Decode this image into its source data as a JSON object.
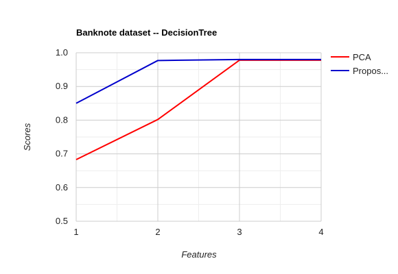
{
  "chart_data": {
    "type": "line",
    "title": "Banknote dataset -- DecisionTree",
    "xlabel": "Features",
    "ylabel": "Scores",
    "x": [
      1,
      2,
      3,
      4
    ],
    "x_tick_labels": [
      "1",
      "2",
      "3",
      "4"
    ],
    "xlim": [
      1,
      4
    ],
    "ylim": [
      0.5,
      1.0
    ],
    "y_ticks": [
      0.5,
      0.6,
      0.7,
      0.8,
      0.9,
      1.0
    ],
    "y_tick_labels": [
      "0.5",
      "0.6",
      "0.7",
      "0.8",
      "0.9",
      "1.0"
    ],
    "grid": true,
    "minor_grid": true,
    "legend_position": "right",
    "series": [
      {
        "name": "PCA",
        "color": "#ff0000",
        "values": [
          0.683,
          0.802,
          0.978,
          0.978
        ]
      },
      {
        "name": "Propos...",
        "color": "#0000cc",
        "values": [
          0.85,
          0.977,
          0.98,
          0.98
        ]
      }
    ]
  }
}
